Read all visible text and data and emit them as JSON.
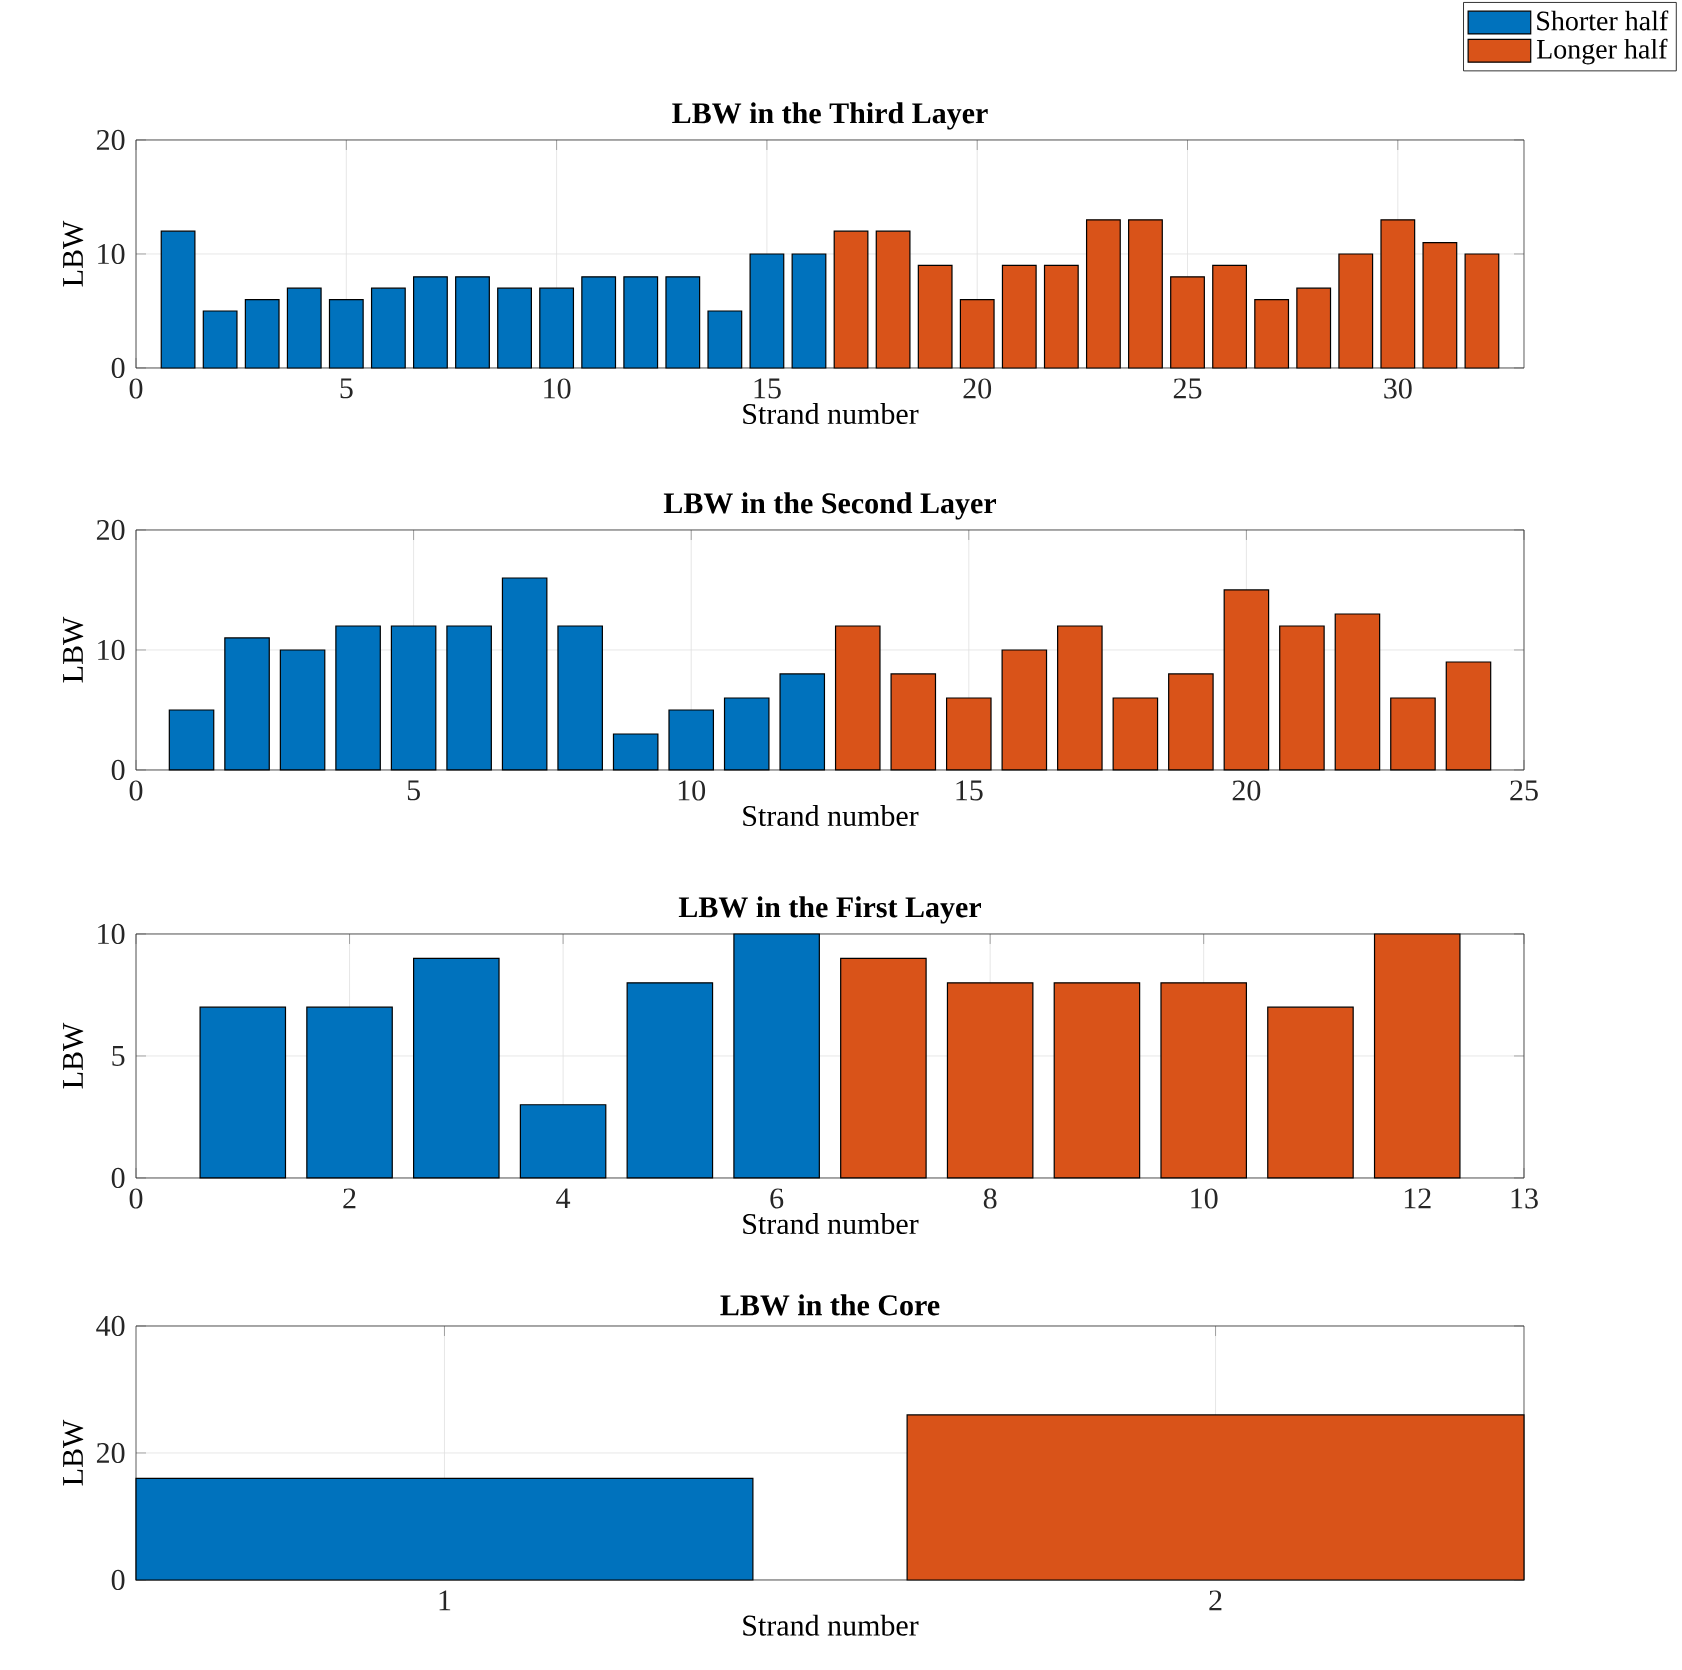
{
  "chart_data": [
    {
      "type": "bar",
      "title": "LBW in the Third Layer",
      "xlabel": "Strand number",
      "ylabel": "LBW",
      "xlim": [
        0,
        33
      ],
      "xticks": [
        0,
        5,
        10,
        15,
        20,
        25,
        30
      ],
      "ylim": [
        0,
        20
      ],
      "yticks": [
        0,
        10,
        20
      ],
      "grid": true,
      "legend": "top right",
      "series": [
        {
          "name": "Shorter half",
          "color": "#0072bd",
          "x": [
            1,
            2,
            3,
            4,
            5,
            6,
            7,
            8,
            9,
            10,
            11,
            12,
            13,
            14,
            15,
            16
          ],
          "values": [
            12,
            5,
            6,
            7,
            6,
            7,
            8,
            8,
            7,
            7,
            8,
            8,
            8,
            5,
            10,
            10
          ]
        },
        {
          "name": "Longer half",
          "color": "#d95319",
          "x": [
            17,
            18,
            19,
            20,
            21,
            22,
            23,
            24,
            25,
            26,
            27,
            28,
            29,
            30,
            31,
            32
          ],
          "values": [
            12,
            12,
            9,
            6,
            9,
            9,
            13,
            13,
            8,
            9,
            6,
            7,
            10,
            13,
            11,
            10
          ]
        }
      ]
    },
    {
      "type": "bar",
      "title": "LBW in the Second Layer",
      "xlabel": "Strand number",
      "ylabel": "LBW",
      "xlim": [
        0,
        25
      ],
      "xticks": [
        0,
        5,
        10,
        15,
        20,
        25
      ],
      "ylim": [
        0,
        20
      ],
      "yticks": [
        0,
        10,
        20
      ],
      "grid": true,
      "series": [
        {
          "color": "#0072bd",
          "x": [
            1,
            2,
            3,
            4,
            5,
            6,
            7,
            8,
            9,
            10,
            11,
            12
          ],
          "values": [
            5,
            11,
            10,
            12,
            12,
            12,
            16,
            12,
            3,
            5,
            6,
            8
          ]
        },
        {
          "color": "#d95319",
          "x": [
            13,
            14,
            15,
            16,
            17,
            18,
            19,
            20,
            21,
            22,
            23,
            24
          ],
          "values": [
            12,
            8,
            6,
            10,
            12,
            6,
            8,
            15,
            12,
            13,
            6,
            9
          ]
        }
      ]
    },
    {
      "type": "bar",
      "title": "LBW in the First Layer",
      "xlabel": "Strand number",
      "ylabel": "LBW",
      "xlim": [
        0,
        13
      ],
      "xticks": [
        0,
        2,
        4,
        6,
        8,
        10,
        12,
        13
      ],
      "ylim": [
        0,
        10
      ],
      "yticks": [
        0,
        5,
        10
      ],
      "grid": true,
      "series": [
        {
          "color": "#0072bd",
          "x": [
            1,
            2,
            3,
            4,
            5,
            6
          ],
          "values": [
            7,
            7,
            9,
            3,
            8,
            10
          ]
        },
        {
          "color": "#d95319",
          "x": [
            7,
            8,
            9,
            10,
            11,
            12
          ],
          "values": [
            9,
            8,
            8,
            8,
            7,
            10
          ]
        }
      ]
    },
    {
      "type": "bar",
      "title": "LBW in the Core",
      "xlabel": "Strand number",
      "ylabel": "LBW",
      "categories": [
        "1",
        "2"
      ],
      "values": [
        16,
        26
      ],
      "colors": [
        "#0072bd",
        "#d95319"
      ],
      "ylim": [
        0,
        40
      ],
      "yticks": [
        0,
        20,
        40
      ],
      "grid": true
    }
  ]
}
